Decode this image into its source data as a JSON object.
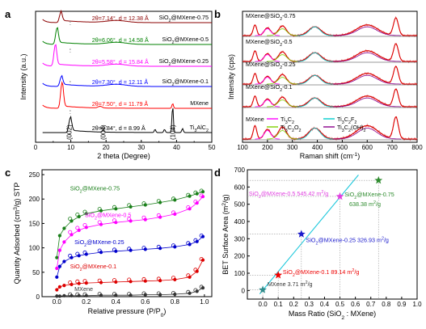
{
  "chart_data": [
    {
      "panel": "a",
      "type": "line",
      "xlabel": "2 theta (Degree)",
      "ylabel": "Intensity (a.u.)",
      "xlim": [
        0,
        50
      ],
      "xticks": [
        "0",
        "10",
        "20",
        "30",
        "40",
        "50"
      ],
      "series": [
        {
          "name": "SiO2@MXene-0.75",
          "color": "#8b0000",
          "peak_2theta": 7.14,
          "annotation": "2θ=7.14°, d = 12.38 Å"
        },
        {
          "name": "SiO2@MXene-0.5",
          "color": "#008000",
          "peak_2theta": 6.06,
          "annotation": "2θ=6.06°, d = 14.58 Å"
        },
        {
          "name": "SiO2@MXene-0.25",
          "color": "#ff00ff",
          "peak_2theta": 5.58,
          "annotation": "2θ=5.58°, d = 15.84 Å"
        },
        {
          "name": "SiO2@MXene-0.1",
          "color": "#0000ff",
          "peak_2theta": 7.3,
          "annotation": "2θ=7.30°, d = 12.11 Å"
        },
        {
          "name": "MXene",
          "color": "#ff0000",
          "peak_2theta": 7.5,
          "annotation": "2θ=7.50°, d = 11.79 Å"
        },
        {
          "name": "Ti3AlC2",
          "color": "#000000",
          "peak_2theta": 9.84,
          "annotation": "2θ=9.84°, d = 8.99 Å"
        }
      ],
      "peak_labels": [
        {
          "label": "(002)",
          "x": 9.5
        },
        {
          "label": "(004)",
          "x": 19.2
        },
        {
          "label": "(104)",
          "x": 38.9
        }
      ]
    },
    {
      "panel": "b",
      "type": "line",
      "xlabel": "Raman shift (cm-1)",
      "ylabel": "Intensity (cps)",
      "xlim": [
        100,
        800
      ],
      "xticks": [
        "100",
        "200",
        "300",
        "400",
        "500",
        "600",
        "700",
        "800"
      ],
      "series_labels": [
        "MXene@SiO2-0.75",
        "MXene@SiO2-0.5",
        "MXene@SiO2-0.25",
        "MXene@SiO2-0.1",
        "MXene"
      ],
      "legend": [
        {
          "name": "Ti3C2",
          "color": "#ff00ff"
        },
        {
          "name": "Ti3C2F2",
          "color": "#00cccc"
        },
        {
          "name": "Ti3C2O2",
          "color": "#7fd000"
        },
        {
          "name": "Ti3C2(OH)2",
          "color": "#8b008b"
        }
      ]
    },
    {
      "panel": "c",
      "type": "scatter",
      "xlabel": "Relative pressure (P/P0)",
      "ylabel": "Quantity Adsorbed (cm3/g) STP",
      "xlim": [
        -0.1,
        1.05
      ],
      "ylim": [
        0,
        260
      ],
      "xticks": [
        0.0,
        0.2,
        0.4,
        0.6,
        0.8,
        1.0
      ],
      "yticks": [
        0,
        50,
        100,
        150,
        200,
        250
      ],
      "series": [
        {
          "name": "SiO2@MXene-0.75",
          "color": "#1a7f1a",
          "x": [
            0.0,
            0.02,
            0.05,
            0.1,
            0.15,
            0.2,
            0.3,
            0.4,
            0.5,
            0.6,
            0.7,
            0.8,
            0.9,
            0.95,
            0.99
          ],
          "y": [
            80,
            125,
            140,
            155,
            164,
            170,
            176,
            180,
            184,
            188,
            193,
            198,
            206,
            211,
            215
          ]
        },
        {
          "name": "SiO2@MXene-0.5",
          "color": "#ff00ff",
          "x": [
            0.0,
            0.02,
            0.05,
            0.1,
            0.15,
            0.2,
            0.3,
            0.4,
            0.5,
            0.6,
            0.7,
            0.8,
            0.9,
            0.95,
            0.99
          ],
          "y": [
            58,
            95,
            112,
            127,
            136,
            142,
            148,
            152,
            155,
            158,
            163,
            169,
            180,
            192,
            205
          ]
        },
        {
          "name": "SiO2@MXene-0.25",
          "color": "#0000cc",
          "x": [
            0.0,
            0.02,
            0.05,
            0.1,
            0.15,
            0.2,
            0.3,
            0.4,
            0.5,
            0.6,
            0.7,
            0.8,
            0.9,
            0.95,
            0.99
          ],
          "y": [
            40,
            62,
            72,
            80,
            84,
            87,
            91,
            93,
            95,
            97,
            99,
            102,
            107,
            113,
            123
          ]
        },
        {
          "name": "SiO2@MXene-0.1",
          "color": "#dd0000",
          "x": [
            0.0,
            0.02,
            0.05,
            0.1,
            0.15,
            0.2,
            0.3,
            0.4,
            0.5,
            0.6,
            0.7,
            0.8,
            0.9,
            0.95,
            0.99
          ],
          "y": [
            14,
            20,
            23,
            25,
            27,
            28,
            29,
            30,
            31,
            32,
            33,
            35,
            40,
            52,
            75
          ]
        },
        {
          "name": "MXene",
          "color": "#333333",
          "x": [
            0.0,
            0.02,
            0.05,
            0.1,
            0.15,
            0.2,
            0.3,
            0.4,
            0.5,
            0.6,
            0.7,
            0.8,
            0.9,
            0.95,
            0.99
          ],
          "y": [
            1,
            1,
            2,
            2,
            2,
            2,
            3,
            3,
            3,
            4,
            4,
            5,
            7,
            11,
            18
          ]
        }
      ]
    },
    {
      "panel": "d",
      "type": "scatter",
      "xlabel": "Mass Ratio (SiO2 : MXene)",
      "ylabel": "BET Surface Area (m2/g)",
      "xlim": [
        -0.1,
        1.0
      ],
      "ylim": [
        -50,
        700
      ],
      "xticks": [
        "0.0",
        "0.1",
        "0.2",
        "0.3",
        "0.4",
        "0.5",
        "0.6",
        "0.7",
        "0.8",
        "0.9",
        "1.0"
      ],
      "yticks": [
        0,
        100,
        200,
        300,
        400,
        500,
        600,
        700
      ],
      "points": [
        {
          "name": "MXene",
          "x": 0.0,
          "y": 3.71,
          "label": "MXene  3.71 m2/g",
          "color": "#2e8b8b"
        },
        {
          "name": "SiO2@MXene-0.1",
          "x": 0.1,
          "y": 89.14,
          "label": "SiO2@MXene-0.1  89.14 m2/g",
          "color": "#ee0000"
        },
        {
          "name": "SiO2@MXene-0.25",
          "x": 0.25,
          "y": 326.93,
          "label": "SiO2@MXene-0.25  326.93 m2/g",
          "color": "#1a1acc"
        },
        {
          "name": "SiO2@MXene-0.5",
          "x": 0.5,
          "y": 545.42,
          "label": "SiO2@MXene-0.5  545.42 m2/g",
          "color": "#e040e0"
        },
        {
          "name": "SiO2@MXene-0.75",
          "x": 0.75,
          "y": 638.38,
          "label": "SiO2@MXene-0.75  638.38 m2/g",
          "color": "#2e8b2e"
        }
      ],
      "fit_line": {
        "x": [
          -0.02,
          0.62
        ],
        "y": [
          -20,
          670
        ],
        "color": "#1ec8dc"
      }
    }
  ]
}
